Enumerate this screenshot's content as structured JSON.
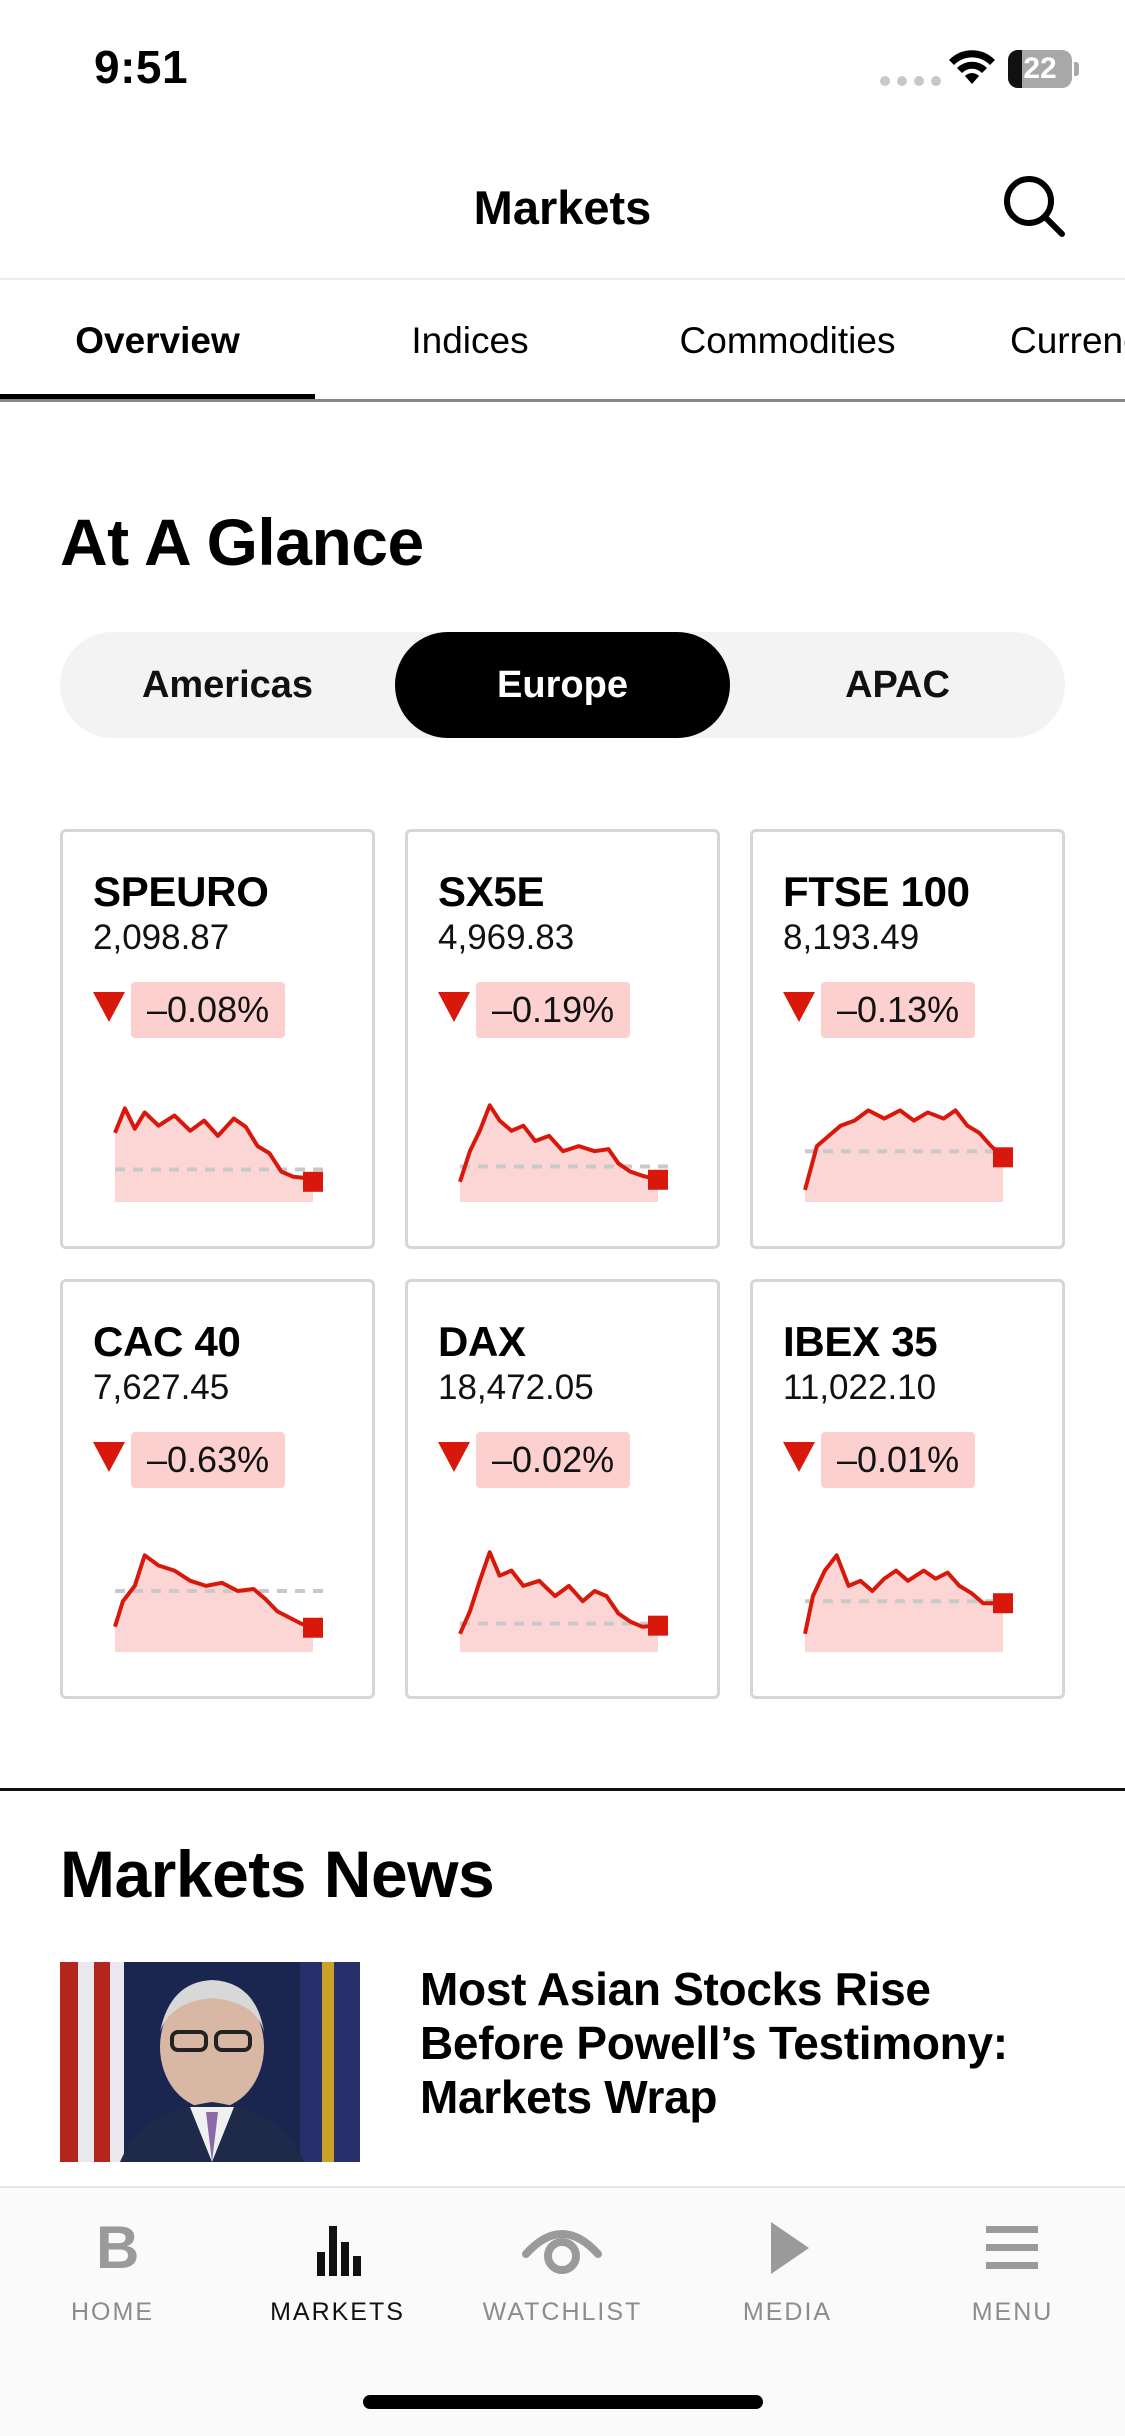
{
  "status_bar": {
    "time": "9:51",
    "battery": "22",
    "battery_level": 0.22
  },
  "header": {
    "title": "Markets"
  },
  "tabs": [
    {
      "label": "Overview",
      "active": true
    },
    {
      "label": "Indices",
      "active": false
    },
    {
      "label": "Commodities",
      "active": false
    },
    {
      "label": "Currencies",
      "active": false
    }
  ],
  "glance": {
    "heading": "At A Glance",
    "regions": [
      {
        "label": "Americas",
        "active": false
      },
      {
        "label": "Europe",
        "active": true
      },
      {
        "label": "APAC",
        "active": false
      }
    ],
    "cards": [
      {
        "symbol": "SPEURO",
        "price": "2,098.87",
        "change": "–0.08%",
        "spark": [
          [
            0,
            0.42
          ],
          [
            0.05,
            0.18
          ],
          [
            0.1,
            0.38
          ],
          [
            0.15,
            0.22
          ],
          [
            0.22,
            0.35
          ],
          [
            0.3,
            0.25
          ],
          [
            0.38,
            0.4
          ],
          [
            0.45,
            0.3
          ],
          [
            0.52,
            0.45
          ],
          [
            0.6,
            0.28
          ],
          [
            0.66,
            0.36
          ],
          [
            0.72,
            0.55
          ],
          [
            0.78,
            0.62
          ],
          [
            0.84,
            0.8
          ],
          [
            0.9,
            0.85
          ],
          [
            0.95,
            0.86
          ],
          [
            1,
            0.9
          ]
        ],
        "baseline": 0.78
      },
      {
        "symbol": "SX5E",
        "price": "4,969.83",
        "change": "–0.19%",
        "spark": [
          [
            0,
            0.9
          ],
          [
            0.05,
            0.6
          ],
          [
            0.1,
            0.4
          ],
          [
            0.15,
            0.15
          ],
          [
            0.2,
            0.3
          ],
          [
            0.26,
            0.4
          ],
          [
            0.32,
            0.35
          ],
          [
            0.38,
            0.5
          ],
          [
            0.45,
            0.45
          ],
          [
            0.52,
            0.6
          ],
          [
            0.6,
            0.55
          ],
          [
            0.68,
            0.6
          ],
          [
            0.75,
            0.58
          ],
          [
            0.8,
            0.72
          ],
          [
            0.86,
            0.8
          ],
          [
            0.92,
            0.84
          ],
          [
            1,
            0.88
          ]
        ],
        "baseline": 0.75
      },
      {
        "symbol": "FTSE 100",
        "price": "8,193.49",
        "change": "–0.13%",
        "spark": [
          [
            0,
            0.98
          ],
          [
            0.06,
            0.55
          ],
          [
            0.12,
            0.45
          ],
          [
            0.18,
            0.35
          ],
          [
            0.25,
            0.3
          ],
          [
            0.32,
            0.2
          ],
          [
            0.4,
            0.28
          ],
          [
            0.48,
            0.2
          ],
          [
            0.55,
            0.3
          ],
          [
            0.62,
            0.22
          ],
          [
            0.7,
            0.28
          ],
          [
            0.76,
            0.2
          ],
          [
            0.82,
            0.35
          ],
          [
            0.88,
            0.42
          ],
          [
            0.94,
            0.55
          ],
          [
            1,
            0.66
          ]
        ],
        "baseline": 0.6
      },
      {
        "symbol": "CAC 40",
        "price": "7,627.45",
        "change": "–0.63%",
        "spark": [
          [
            0,
            0.85
          ],
          [
            0.04,
            0.6
          ],
          [
            0.1,
            0.45
          ],
          [
            0.15,
            0.15
          ],
          [
            0.22,
            0.25
          ],
          [
            0.3,
            0.3
          ],
          [
            0.38,
            0.4
          ],
          [
            0.46,
            0.45
          ],
          [
            0.54,
            0.42
          ],
          [
            0.62,
            0.5
          ],
          [
            0.7,
            0.48
          ],
          [
            0.76,
            0.58
          ],
          [
            0.82,
            0.7
          ],
          [
            0.88,
            0.76
          ],
          [
            0.94,
            0.82
          ],
          [
            1,
            0.86
          ]
        ],
        "baseline": 0.5
      },
      {
        "symbol": "DAX",
        "price": "18,472.05",
        "change": "–0.02%",
        "spark": [
          [
            0,
            0.92
          ],
          [
            0.05,
            0.7
          ],
          [
            0.1,
            0.4
          ],
          [
            0.15,
            0.12
          ],
          [
            0.2,
            0.35
          ],
          [
            0.26,
            0.3
          ],
          [
            0.32,
            0.45
          ],
          [
            0.4,
            0.4
          ],
          [
            0.48,
            0.55
          ],
          [
            0.55,
            0.45
          ],
          [
            0.62,
            0.6
          ],
          [
            0.68,
            0.5
          ],
          [
            0.74,
            0.55
          ],
          [
            0.8,
            0.72
          ],
          [
            0.86,
            0.8
          ],
          [
            0.92,
            0.85
          ],
          [
            1,
            0.84
          ]
        ],
        "baseline": 0.82
      },
      {
        "symbol": "IBEX 35",
        "price": "11,022.10",
        "change": "–0.01%",
        "spark": [
          [
            0,
            0.92
          ],
          [
            0.04,
            0.55
          ],
          [
            0.1,
            0.3
          ],
          [
            0.16,
            0.15
          ],
          [
            0.22,
            0.45
          ],
          [
            0.28,
            0.4
          ],
          [
            0.34,
            0.5
          ],
          [
            0.4,
            0.38
          ],
          [
            0.46,
            0.3
          ],
          [
            0.52,
            0.4
          ],
          [
            0.6,
            0.3
          ],
          [
            0.66,
            0.38
          ],
          [
            0.72,
            0.32
          ],
          [
            0.78,
            0.45
          ],
          [
            0.84,
            0.52
          ],
          [
            0.9,
            0.62
          ],
          [
            1,
            0.62
          ]
        ],
        "baseline": 0.6
      }
    ]
  },
  "news": {
    "heading": "Markets News",
    "articles": [
      {
        "headline": "Most Asian Stocks Rise Before Powell’s Testimony: Markets Wrap"
      }
    ]
  },
  "bottom_nav": [
    {
      "label": "HOME",
      "icon": "home-b-icon",
      "active": false
    },
    {
      "label": "MARKETS",
      "icon": "bar-chart-icon",
      "active": true
    },
    {
      "label": "WATCHLIST",
      "icon": "eye-icon",
      "active": false
    },
    {
      "label": "MEDIA",
      "icon": "play-icon",
      "active": false
    },
    {
      "label": "MENU",
      "icon": "menu-icon",
      "active": false
    }
  ],
  "colors": {
    "accent_red": "#d9180c",
    "spark_fill": "#fbd6d4",
    "badge_bg": "#fbd0cf"
  }
}
